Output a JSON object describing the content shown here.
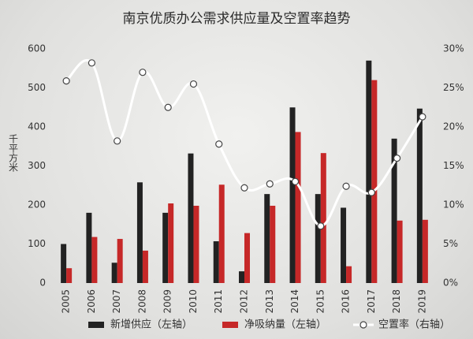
{
  "chart_data": {
    "type": "bar",
    "title": "南京优质办公需求供应量及空置率趋势",
    "y_label": "千平方米",
    "categories": [
      "2005",
      "2006",
      "2007",
      "2008",
      "2009",
      "2010",
      "2011",
      "2012",
      "2013",
      "2014",
      "2015",
      "2016",
      "2017",
      "2018",
      "2019"
    ],
    "series": [
      {
        "name": "新增供应（左轴）",
        "color": "#222222",
        "values": [
          100,
          180,
          52,
          258,
          180,
          332,
          107,
          30,
          228,
          450,
          228,
          193,
          570,
          370,
          447
        ]
      },
      {
        "name": "净吸纳量（左轴）",
        "color": "#c62828",
        "values": [
          38,
          118,
          113,
          83,
          204,
          198,
          252,
          128,
          198,
          387,
          333,
          43,
          520,
          160,
          162
        ]
      },
      {
        "name": "空置率（右轴）",
        "type": "line",
        "axis": "y2",
        "color": "#ffffff",
        "values": [
          25.9,
          28.2,
          18.2,
          27.0,
          22.5,
          25.5,
          17.8,
          12.2,
          12.7,
          13.0,
          7.3,
          12.4,
          11.6,
          16.0,
          21.3
        ]
      }
    ],
    "ylim": [
      0,
      600
    ],
    "yticks": [
      0,
      100,
      200,
      300,
      400,
      500,
      600
    ],
    "y2lim": [
      0,
      30
    ],
    "y2ticks": [
      {
        "value": 0,
        "label": "0%"
      },
      {
        "value": 5,
        "label": "5%"
      },
      {
        "value": 10,
        "label": "10%"
      },
      {
        "value": 15,
        "label": "15%"
      },
      {
        "value": 20,
        "label": "20%"
      },
      {
        "value": 25,
        "label": "25%"
      },
      {
        "value": 30,
        "label": "30%"
      }
    ],
    "grid": false
  }
}
